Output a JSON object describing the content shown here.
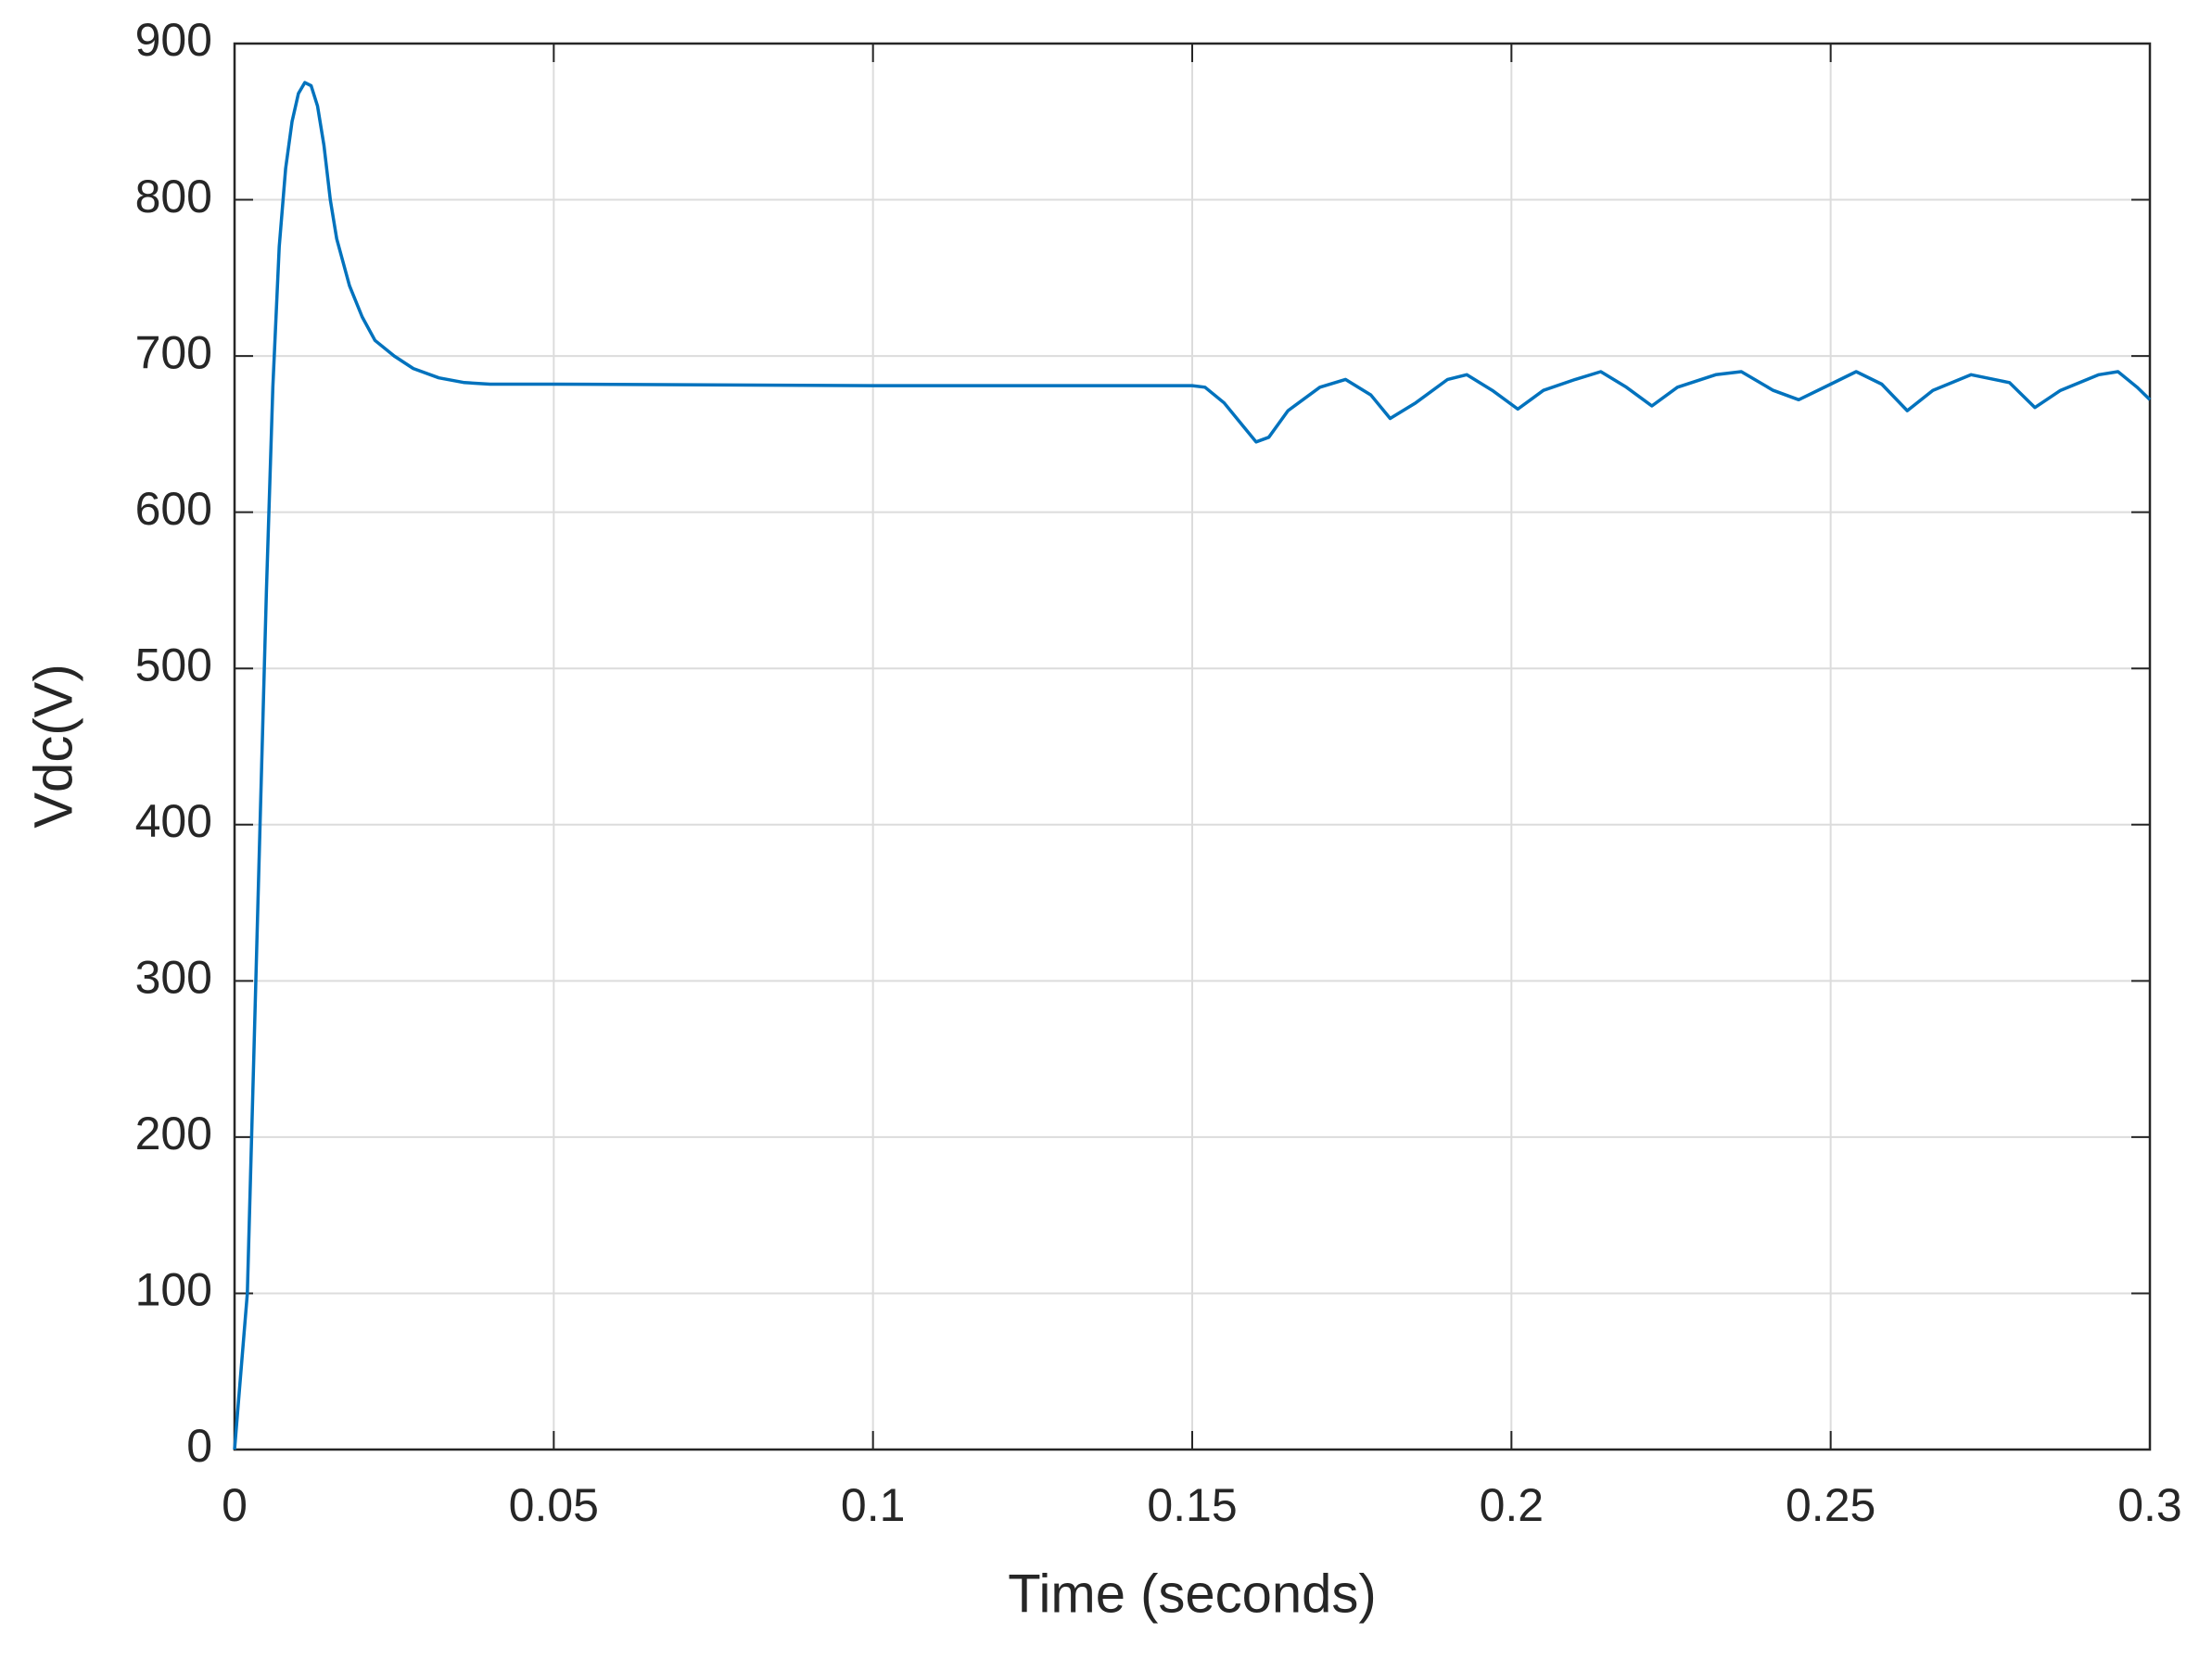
{
  "chart_data": {
    "type": "line",
    "x_label": "Time (seconds)",
    "y_label": "Vdc(V)",
    "xlim": [
      0,
      0.3
    ],
    "xticks": [
      0,
      0.05,
      0.1,
      0.15,
      0.2,
      0.25,
      0.3
    ],
    "ylim": [
      0,
      900
    ],
    "yticks": [
      0,
      100,
      200,
      300,
      400,
      500,
      600,
      700,
      800,
      900
    ],
    "grid": true,
    "x": [
      0,
      0.002,
      0.003,
      0.004,
      0.005,
      0.006,
      0.007,
      0.008,
      0.009,
      0.01,
      0.011,
      0.012,
      0.013,
      0.014,
      0.015,
      0.016,
      0.018,
      0.02,
      0.022,
      0.025,
      0.028,
      0.032,
      0.036,
      0.04,
      0.05,
      0.1,
      0.15,
      0.152,
      0.155,
      0.158,
      0.16,
      0.162,
      0.165,
      0.17,
      0.174,
      0.178,
      0.181,
      0.185,
      0.19,
      0.193,
      0.197,
      0.201,
      0.205,
      0.21,
      0.214,
      0.218,
      0.222,
      0.226,
      0.232,
      0.236,
      0.241,
      0.245,
      0.25,
      0.254,
      0.258,
      0.262,
      0.266,
      0.272,
      0.278,
      0.282,
      0.286,
      0.292,
      0.295,
      0.298,
      0.3
    ],
    "series": [
      {
        "name": "Vdc",
        "color": "#0072bd",
        "values": [
          0,
          100,
          250,
          400,
          550,
          680,
          770,
          820,
          850,
          868,
          875,
          873,
          860,
          835,
          800,
          775,
          745,
          725,
          710,
          700,
          692,
          686,
          683,
          682,
          682,
          681,
          681,
          680,
          670,
          655,
          645,
          648,
          665,
          680,
          685,
          675,
          660,
          670,
          685,
          688,
          678,
          666,
          678,
          685,
          690,
          680,
          668,
          680,
          688,
          690,
          678,
          672,
          682,
          690,
          682,
          665,
          678,
          688,
          683,
          667,
          678,
          688,
          690,
          680,
          672
        ]
      }
    ]
  }
}
